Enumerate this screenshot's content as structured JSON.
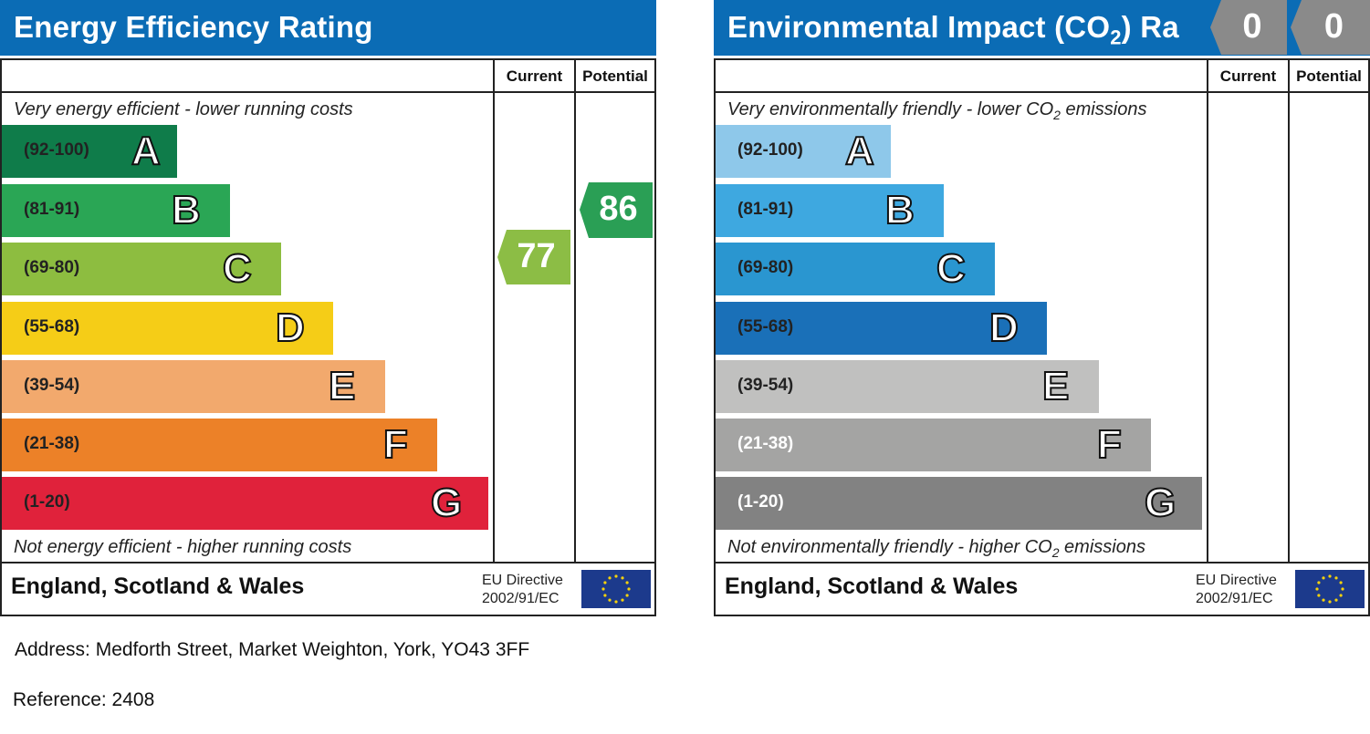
{
  "energy": {
    "title": "Energy Efficiency Rating",
    "current_label": "Current",
    "potential_label": "Potential",
    "top_caption": "Very energy efficient - lower running costs",
    "bottom_caption": "Not energy efficient - higher running costs",
    "footer": "England, Scotland & Wales",
    "eu_line1": "EU Directive",
    "eu_line2": "2002/91/EC",
    "current_value": "77",
    "potential_value": "86",
    "current_color": "#8cbd45",
    "potential_color": "#2a9f55",
    "bands": [
      {
        "range": "(92-100)",
        "letter": "A",
        "color": "#0f7c4a"
      },
      {
        "range": "(81-91)",
        "letter": "B",
        "color": "#2aa655"
      },
      {
        "range": "(69-80)",
        "letter": "C",
        "color": "#8dbd40"
      },
      {
        "range": "(55-68)",
        "letter": "D",
        "color": "#f5cd17"
      },
      {
        "range": "(39-54)",
        "letter": "E",
        "color": "#f2a96d"
      },
      {
        "range": "(21-38)",
        "letter": "F",
        "color": "#ec8128"
      },
      {
        "range": "(1-20)",
        "letter": "G",
        "color": "#e0223b"
      }
    ]
  },
  "environment": {
    "title": "Environmental Impact (CO",
    "title_sub": "2",
    "title_tail": ") Ra",
    "current_label": "Current",
    "potential_label": "Potential",
    "top_caption_pre": "Very environmentally friendly - lower CO",
    "top_caption_sub": "2",
    "top_caption_post": " emissions",
    "bottom_caption_pre": "Not environmentally friendly - higher CO",
    "bottom_caption_sub": "2",
    "bottom_caption_post": " emissions",
    "footer": "England, Scotland & Wales",
    "eu_line1": "EU Directive",
    "eu_line2": "2002/91/EC",
    "current_value": "0",
    "potential_value": "0",
    "badge_color": "#8a8a8a",
    "bands": [
      {
        "range": "(92-100)",
        "letter": "A",
        "color": "#8ec8ea"
      },
      {
        "range": "(81-91)",
        "letter": "B",
        "color": "#3ea8e0"
      },
      {
        "range": "(69-80)",
        "letter": "C",
        "color": "#2a96d0"
      },
      {
        "range": "(55-68)",
        "letter": "D",
        "color": "#1a70b8"
      },
      {
        "range": "(39-54)",
        "letter": "E",
        "color": "#c0c0bf"
      },
      {
        "range": "(21-38)",
        "letter": "F",
        "color": "#a4a4a3"
      },
      {
        "range": "(1-20)",
        "letter": "G",
        "color": "#828282"
      }
    ]
  },
  "address": "Address: Medforth Street, Market Weighton, York, YO43 3FF",
  "reference": "Reference: 2408"
}
